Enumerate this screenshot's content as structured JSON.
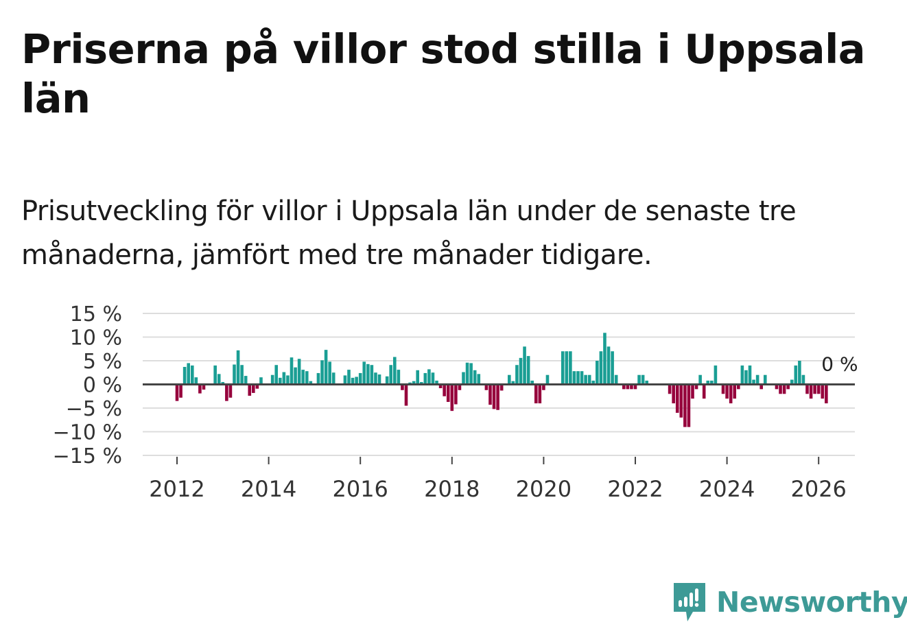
{
  "header": {
    "title": "Priserna på villor stod stilla i Uppsala län",
    "subtitle": "Prisutveckling för villor i Uppsala län under de senaste tre månaderna, jämfört med tre månader tidigare."
  },
  "brand": {
    "name": "Newsworthy",
    "icon": "newsworthy-logo-icon",
    "color": "#3d9a96"
  },
  "colors": {
    "positive": "#1a9e94",
    "negative": "#96003c",
    "zero_line": "#444444",
    "grid": "#dddddd"
  },
  "chart_data": {
    "type": "bar",
    "title": "Priserna på villor stod stilla i Uppsala län",
    "subtitle": "Prisutveckling för villor i Uppsala län under de senaste tre månaderna, jämfört med tre månader tidigare.",
    "unit": "%",
    "start_year": 2012,
    "start_month": 1,
    "ylim": [
      -15,
      15
    ],
    "yticks": [
      15,
      10,
      5,
      0,
      -5,
      -10,
      -15
    ],
    "ytick_labels": [
      "15 %",
      "10 %",
      "5 %",
      "0 %",
      "−5 %",
      "−10 %",
      "−15 %"
    ],
    "xticks": [
      2012,
      2014,
      2016,
      2018,
      2020,
      2022,
      2024,
      2026
    ],
    "xtick_labels": [
      "2012",
      "2014",
      "2016",
      "2018",
      "2020",
      "2022",
      "2024",
      "2026"
    ],
    "grid": true,
    "last_value_label": "0 %",
    "values": [
      -3.5,
      -2.8,
      3.7,
      4.5,
      4.0,
      1.5,
      -1.9,
      -1.1,
      0,
      0,
      4.0,
      2.2,
      0.5,
      -3.5,
      -2.8,
      4.2,
      7.2,
      4.1,
      1.8,
      -2.4,
      -1.8,
      -0.9,
      1.5,
      0,
      0,
      2.0,
      4.1,
      1.4,
      2.6,
      1.9,
      5.7,
      3.6,
      5.4,
      3.1,
      2.8,
      0.7,
      0,
      2.4,
      5.1,
      7.3,
      4.8,
      2.5,
      0.2,
      0,
      1.9,
      3.1,
      1.4,
      1.6,
      2.4,
      4.8,
      4.3,
      4.1,
      2.5,
      2.1,
      0,
      1.7,
      4.1,
      5.8,
      3.1,
      -1.2,
      -4.5,
      0.4,
      0.7,
      3.0,
      0.5,
      2.4,
      3.2,
      2.5,
      0.8,
      -0.8,
      -2.5,
      -3.7,
      -5.6,
      -4.2,
      -1.2,
      2.6,
      4.6,
      4.5,
      3.0,
      2.2,
      0,
      -1.2,
      -4.3,
      -5.2,
      -5.4,
      -1.3,
      0,
      2.0,
      0.7,
      4.1,
      5.6,
      8.0,
      6.0,
      0.8,
      -4.0,
      -4.0,
      -1.2,
      2.0,
      0,
      0,
      0,
      7.0,
      7.0,
      7.0,
      2.8,
      2.8,
      2.8,
      2.0,
      2.0,
      0.8,
      5.0,
      7.0,
      10.9,
      8.0,
      7.0,
      2.0,
      0,
      -1.0,
      -1.0,
      -1.0,
      -1.0,
      2.0,
      2.0,
      0.8,
      0,
      0,
      0,
      0,
      0,
      -2.0,
      -4.0,
      -6.0,
      -7.0,
      -9.0,
      -9.0,
      -3.0,
      -1.0,
      2.0,
      -3.0,
      0.8,
      0.8,
      4.0,
      0,
      -2.0,
      -3.0,
      -4.0,
      -3.0,
      -1.0,
      4.0,
      3.0,
      4.0,
      1.0,
      2.0,
      -1.0,
      2.0,
      0,
      0,
      -1.0,
      -2.0,
      -2.0,
      -1.0,
      1.0,
      4.0,
      5.0,
      2.0,
      -2.0,
      -3.0,
      -2.0,
      -2.0,
      -3.0,
      -4.0,
      0
    ]
  }
}
